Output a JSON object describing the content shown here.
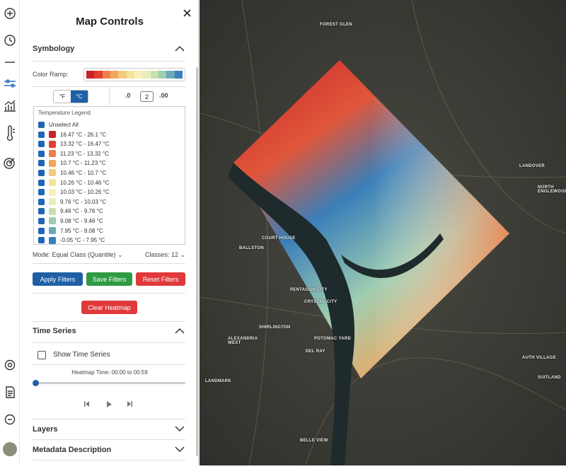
{
  "title": "Map Controls",
  "symbology": {
    "heading": "Symbology",
    "color_ramp_label": "Color Ramp:",
    "units": [
      "°F",
      "°C"
    ],
    "decimals": {
      "fewer": ".0",
      "value": "2",
      "more": ".00"
    },
    "legend": {
      "title": "Temperature Legend",
      "unselect_all": "Unselect All",
      "items": [
        {
          "label": "16.47 °C - 26.1 °C",
          "color": "#c8232b"
        },
        {
          "label": "13.32 °C - 16.47 °C",
          "color": "#e0402f"
        },
        {
          "label": "11.23 °C - 13.32 °C",
          "color": "#ee7e4a"
        },
        {
          "label": "10.7 °C - 11.23 °C",
          "color": "#f4a55c"
        },
        {
          "label": "10.46 °C - 10.7 °C",
          "color": "#f3c97a"
        },
        {
          "label": "10.26 °C - 10.46 °C",
          "color": "#f6e39a"
        },
        {
          "label": "10.03 °C - 10.26 °C",
          "color": "#f8f0bb"
        },
        {
          "label": "9.76 °C - 10.03 °C",
          "color": "#e8efbd"
        },
        {
          "label": "9.46 °C - 9.76 °C",
          "color": "#c7e1b0"
        },
        {
          "label": "9.08 °C - 9.46 °C",
          "color": "#9fcdb0"
        },
        {
          "label": "7.95 °C - 9.08 °C",
          "color": "#6aaab8"
        },
        {
          "label": "-0.05 °C - 7.95 °C",
          "color": "#3a7fb9"
        }
      ]
    },
    "mode": "Mode: Equal Class (Quantile)",
    "classes": "Classes: 12",
    "buttons": [
      "Apply Filters",
      "Save Filters",
      "Reset Filters"
    ],
    "clear": "Clear Heatmap"
  },
  "time_series": {
    "heading": "Time Series",
    "show": "Show Time Series",
    "time": "Heatmap Time: 00:00 to 00:59"
  },
  "layers": "Layers",
  "metadata": "Metadata Description",
  "map_labels": [
    "FOREST GLEN",
    "LANDOVER",
    "NORTH ENGLEWOOD",
    "BALLSTON",
    "COURT HOUSE",
    "PENTAGON CITY",
    "CRYSTAL CITY",
    "SHIRLINGTON",
    "ALEXANDRIA WEST",
    "POTOMAC YARD",
    "DEL RAY",
    "AUTH VILLAGE",
    "SUITLAND",
    "LANDMARK",
    "BELLE VIEW"
  ]
}
